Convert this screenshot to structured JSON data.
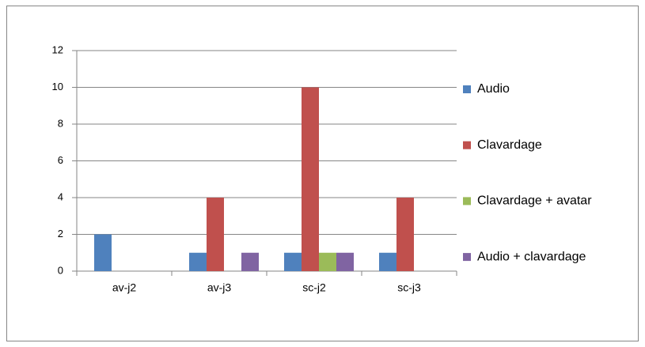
{
  "chart_data": {
    "type": "bar",
    "categories": [
      "av-j2",
      "av-j3",
      "sc-j2",
      "sc-j3"
    ],
    "series": [
      {
        "name": "Audio",
        "color": "#4f81bd",
        "values": [
          2,
          1,
          1,
          1
        ]
      },
      {
        "name": "Clavardage",
        "color": "#c0504d",
        "values": [
          0,
          4,
          10,
          4
        ]
      },
      {
        "name": "Clavardage + avatar",
        "color": "#9bbb59",
        "values": [
          0,
          0,
          1,
          0
        ]
      },
      {
        "name": "Audio + clavardage",
        "color": "#8064a2",
        "values": [
          0,
          1,
          1,
          0
        ]
      }
    ],
    "ylim": [
      0,
      12
    ],
    "yticks": [
      0,
      2,
      4,
      6,
      8,
      10,
      12
    ],
    "grid": true,
    "legend": "right"
  }
}
